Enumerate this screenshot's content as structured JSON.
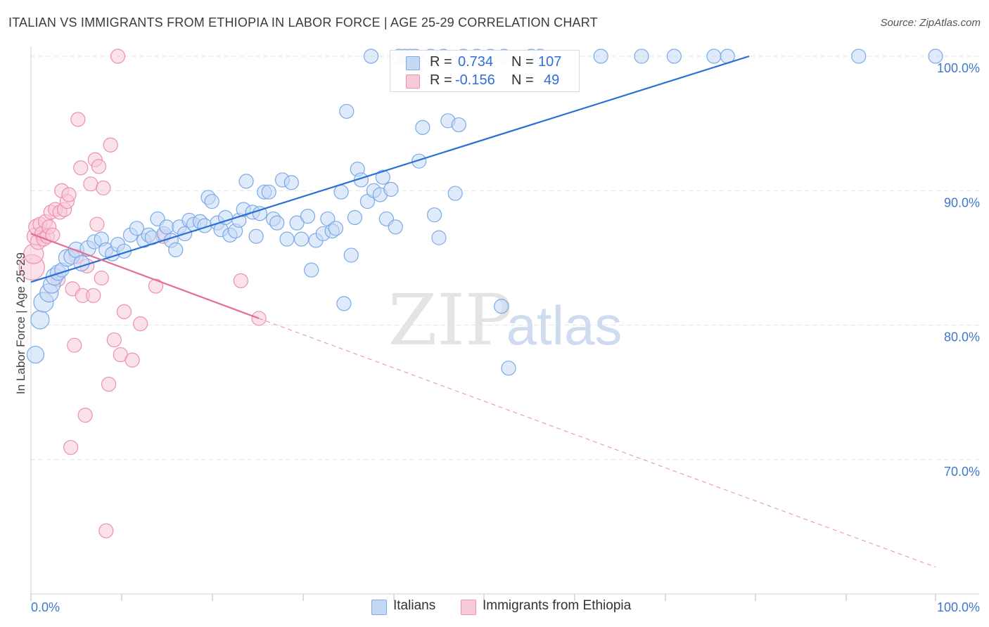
{
  "header": {
    "title": "ITALIAN VS IMMIGRANTS FROM ETHIOPIA IN LABOR FORCE | AGE 25-29 CORRELATION CHART",
    "source": "Source: ZipAtlas.com"
  },
  "watermark": {
    "zip": "ZIP",
    "atlas": "atlas"
  },
  "stats_legend": {
    "r_label": "R =",
    "n_label": "N =",
    "rows": [
      {
        "r": "0.734",
        "n": "107",
        "color": "#7aaae8",
        "fill": "#c5d9f5"
      },
      {
        "r": "-0.156",
        "n": "49",
        "color": "#ee8fb0",
        "fill": "#f8c9d9"
      }
    ]
  },
  "chart_data": {
    "type": "scatter",
    "xlabel": "",
    "ylabel": "In Labor Force | Age 25-29",
    "xlim": [
      0,
      100
    ],
    "ylim": [
      60,
      100
    ],
    "x_tick_labels": [
      "0.0%",
      "100.0%"
    ],
    "y_ticks": [
      70,
      80,
      90,
      100
    ],
    "y_tick_labels": [
      "70.0%",
      "80.0%",
      "90.0%",
      "100.0%"
    ],
    "grid": true,
    "legend_position": "bottom",
    "series": [
      {
        "name": "Italians",
        "color": "#7aaae8",
        "fill": "#c5d9f5",
        "trend_color": "#2a6fd6",
        "trend": {
          "x": [
            0,
            79.4
          ],
          "y": [
            83.2,
            100
          ]
        },
        "points": [
          [
            0.5,
            77.8
          ],
          [
            1.0,
            80.4
          ],
          [
            1.4,
            81.7
          ],
          [
            2.0,
            82.4
          ],
          [
            2.3,
            83.0
          ],
          [
            2.6,
            83.6
          ],
          [
            3.0,
            83.9
          ],
          [
            3.4,
            84.1
          ],
          [
            4.0,
            85.0
          ],
          [
            4.5,
            85.1
          ],
          [
            5.0,
            85.6
          ],
          [
            5.6,
            84.6
          ],
          [
            6.3,
            85.7
          ],
          [
            7.0,
            86.2
          ],
          [
            7.8,
            86.4
          ],
          [
            8.3,
            85.6
          ],
          [
            9.0,
            85.3
          ],
          [
            9.6,
            86.0
          ],
          [
            10.3,
            85.5
          ],
          [
            11.0,
            86.7
          ],
          [
            11.7,
            87.2
          ],
          [
            12.5,
            86.3
          ],
          [
            13.0,
            86.7
          ],
          [
            13.4,
            86.5
          ],
          [
            14.0,
            87.9
          ],
          [
            14.7,
            86.8
          ],
          [
            15.0,
            87.3
          ],
          [
            15.5,
            86.3
          ],
          [
            16.0,
            85.6
          ],
          [
            16.4,
            87.3
          ],
          [
            17.0,
            86.8
          ],
          [
            17.5,
            87.8
          ],
          [
            18.0,
            87.5
          ],
          [
            18.7,
            87.7
          ],
          [
            19.2,
            87.4
          ],
          [
            19.6,
            89.5
          ],
          [
            20.0,
            89.2
          ],
          [
            20.6,
            87.6
          ],
          [
            21.0,
            87.1
          ],
          [
            21.5,
            88.0
          ],
          [
            22.0,
            86.7
          ],
          [
            22.6,
            87.0
          ],
          [
            23.0,
            87.8
          ],
          [
            23.5,
            88.6
          ],
          [
            23.8,
            90.7
          ],
          [
            24.5,
            88.4
          ],
          [
            24.9,
            86.6
          ],
          [
            25.3,
            88.3
          ],
          [
            25.8,
            89.9
          ],
          [
            26.3,
            89.9
          ],
          [
            26.8,
            87.9
          ],
          [
            27.2,
            87.6
          ],
          [
            27.8,
            90.8
          ],
          [
            28.3,
            86.4
          ],
          [
            28.8,
            90.6
          ],
          [
            29.4,
            87.6
          ],
          [
            29.9,
            86.4
          ],
          [
            30.6,
            88.1
          ],
          [
            31.0,
            84.1
          ],
          [
            31.5,
            86.3
          ],
          [
            32.3,
            86.8
          ],
          [
            32.8,
            87.9
          ],
          [
            33.3,
            87.0
          ],
          [
            33.7,
            87.2
          ],
          [
            34.3,
            89.9
          ],
          [
            34.6,
            81.6
          ],
          [
            34.9,
            95.9
          ],
          [
            35.4,
            85.2
          ],
          [
            35.8,
            88.0
          ],
          [
            36.1,
            91.6
          ],
          [
            36.5,
            90.8
          ],
          [
            37.2,
            89.2
          ],
          [
            37.6,
            100
          ],
          [
            37.9,
            90.0
          ],
          [
            38.6,
            89.7
          ],
          [
            38.9,
            91.0
          ],
          [
            39.3,
            87.9
          ],
          [
            39.8,
            90.1
          ],
          [
            40.3,
            87.3
          ],
          [
            40.7,
            100
          ],
          [
            41.3,
            100
          ],
          [
            41.9,
            100
          ],
          [
            42.5,
            100
          ],
          [
            42.9,
            92.2
          ],
          [
            43.3,
            94.7
          ],
          [
            44.2,
            100
          ],
          [
            44.6,
            88.2
          ],
          [
            45.1,
            86.5
          ],
          [
            45.6,
            100
          ],
          [
            46.1,
            95.2
          ],
          [
            46.9,
            89.8
          ],
          [
            47.3,
            94.9
          ],
          [
            47.8,
            100
          ],
          [
            49.3,
            100
          ],
          [
            50.8,
            100
          ],
          [
            52.3,
            100
          ],
          [
            52.0,
            81.4
          ],
          [
            52.8,
            76.8
          ],
          [
            55.3,
            100
          ],
          [
            56.3,
            100
          ],
          [
            67.5,
            100
          ],
          [
            71.1,
            100
          ],
          [
            75.5,
            100
          ],
          [
            77.0,
            100
          ],
          [
            91.5,
            100
          ],
          [
            100,
            100
          ],
          [
            63.0,
            100
          ]
        ],
        "sizes": [
          12,
          13,
          14,
          13,
          12,
          12,
          11,
          10,
          12,
          11,
          11,
          11,
          11,
          10,
          10,
          10,
          10,
          10,
          10,
          10,
          10,
          10,
          10,
          10,
          10,
          10,
          10,
          10,
          10,
          10,
          10,
          10,
          10,
          10,
          10,
          10,
          10,
          10,
          10,
          10,
          10,
          10,
          10,
          10,
          10,
          10,
          10,
          10,
          10,
          10,
          10,
          10,
          10,
          10,
          10,
          10,
          10,
          10,
          10,
          10,
          10,
          10,
          10,
          10,
          10,
          10,
          10,
          10,
          10,
          10,
          10,
          10,
          10,
          10,
          10,
          10,
          10,
          10,
          10,
          10,
          10,
          10,
          10,
          10,
          10,
          10,
          10,
          10,
          10,
          10,
          10,
          10,
          10,
          10,
          10,
          10,
          10,
          10,
          10,
          10,
          10,
          10,
          10,
          10,
          10,
          10,
          10
        ]
      },
      {
        "name": "Immigrants from Ethiopia",
        "color": "#ee8fb0",
        "fill": "#f8c9d9",
        "trend_color": "#e36f98",
        "trend": {
          "x": [
            0,
            25.2
          ],
          "y": [
            86.8,
            80.5
          ]
        },
        "trend_dashed": {
          "x": [
            25.2,
            100
          ],
          "y": [
            80.5,
            62.0
          ]
        },
        "points": [
          [
            0.1,
            84.3
          ],
          [
            0.3,
            85.3
          ],
          [
            0.5,
            86.6
          ],
          [
            0.6,
            87.3
          ],
          [
            0.8,
            86.2
          ],
          [
            1.0,
            87.5
          ],
          [
            1.2,
            86.8
          ],
          [
            1.4,
            86.4
          ],
          [
            1.6,
            87.7
          ],
          [
            1.8,
            86.6
          ],
          [
            2.0,
            87.3
          ],
          [
            2.2,
            88.4
          ],
          [
            2.4,
            86.7
          ],
          [
            2.7,
            88.6
          ],
          [
            3.0,
            83.4
          ],
          [
            3.2,
            88.4
          ],
          [
            3.4,
            90.0
          ],
          [
            3.7,
            88.6
          ],
          [
            4.0,
            89.2
          ],
          [
            4.2,
            89.7
          ],
          [
            4.4,
            70.9
          ],
          [
            4.6,
            82.7
          ],
          [
            4.8,
            78.5
          ],
          [
            5.0,
            85.1
          ],
          [
            5.2,
            95.3
          ],
          [
            5.5,
            91.7
          ],
          [
            5.7,
            82.2
          ],
          [
            6.0,
            73.3
          ],
          [
            6.2,
            84.4
          ],
          [
            6.6,
            90.5
          ],
          [
            6.9,
            82.2
          ],
          [
            7.1,
            92.3
          ],
          [
            7.3,
            87.5
          ],
          [
            7.5,
            91.8
          ],
          [
            7.8,
            83.5
          ],
          [
            8.0,
            90.2
          ],
          [
            8.3,
            64.7
          ],
          [
            8.6,
            75.6
          ],
          [
            8.8,
            93.4
          ],
          [
            9.2,
            78.9
          ],
          [
            9.6,
            100
          ],
          [
            9.9,
            77.8
          ],
          [
            10.3,
            81.0
          ],
          [
            11.2,
            77.4
          ],
          [
            12.1,
            80.1
          ],
          [
            13.8,
            82.9
          ],
          [
            14.6,
            86.6
          ],
          [
            23.2,
            83.3
          ],
          [
            25.2,
            80.5
          ]
        ],
        "sizes": [
          18,
          14,
          12,
          11,
          11,
          10,
          10,
          10,
          10,
          10,
          10,
          10,
          10,
          10,
          10,
          10,
          10,
          10,
          10,
          10,
          10,
          10,
          10,
          10,
          10,
          10,
          10,
          10,
          10,
          10,
          10,
          10,
          10,
          10,
          10,
          10,
          10,
          10,
          10,
          10,
          10,
          10,
          10,
          10,
          10,
          10,
          10,
          10,
          10
        ]
      }
    ]
  }
}
